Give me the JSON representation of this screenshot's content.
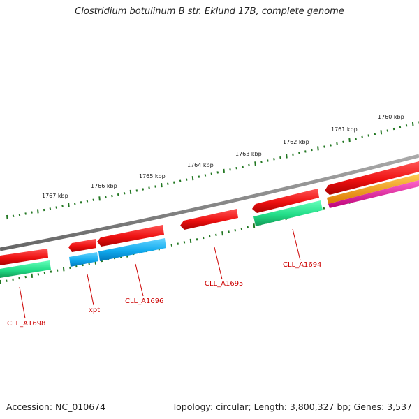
{
  "title": "Clostridium botulinum B str. Eklund 17B, complete genome",
  "footer": {
    "accession": "Accession: NC_010674",
    "topology": "Topology: circular; Length: 3,800,327 bp; Genes: 3,537"
  },
  "colors": {
    "backbone": "#888888",
    "tick": "#227722",
    "label": "#cc0000",
    "gene_red": "#ee1111",
    "gene_green": "#22dd88",
    "gene_blue": "#11aaee",
    "gene_orange": "#ff9900",
    "gene_pink": "#ee2299"
  },
  "scale_labels": [
    "1760 kbp",
    "1761 kbp",
    "1762 kbp",
    "1763 kbp",
    "1764 kbp",
    "1765 kbp",
    "1766 kbp",
    "1767 kbp"
  ],
  "gene_labels": [
    "CLL_A1698",
    "xpt",
    "CLL_A1696",
    "CLL_A1695",
    "CLL_A1694"
  ]
}
